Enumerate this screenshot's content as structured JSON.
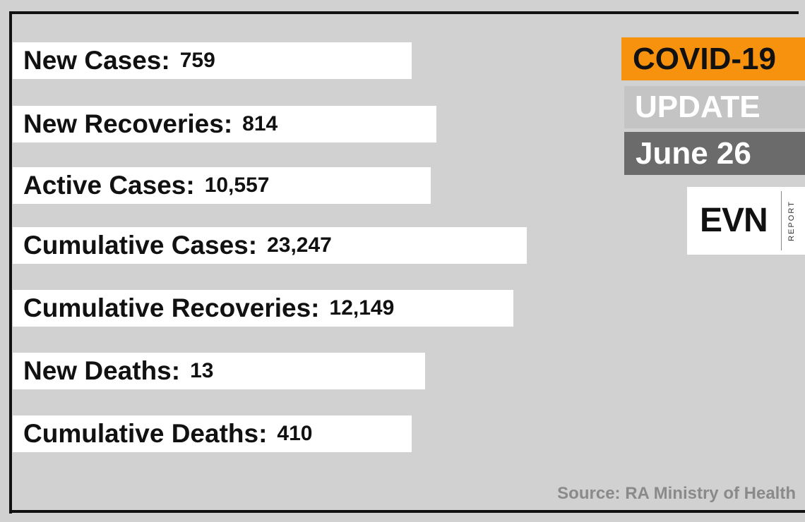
{
  "stats": [
    {
      "label": "New Cases:",
      "value": "759"
    },
    {
      "label": "New Recoveries:",
      "value": "814"
    },
    {
      "label": "Active Cases:",
      "value": "10,557"
    },
    {
      "label": "Cumulative Cases:",
      "value": "23,247"
    },
    {
      "label": "Cumulative Recoveries:",
      "value": "12,149"
    },
    {
      "label": "New Deaths:",
      "value": "13"
    },
    {
      "label": "Cumulative Deaths:",
      "value": "410"
    }
  ],
  "badge": {
    "title": "COVID-19",
    "subtitle": "UPDATE",
    "date": "June 26"
  },
  "logo": {
    "name": "EVN",
    "tag": "REPORT"
  },
  "source": "Source: RA Ministry of Health"
}
